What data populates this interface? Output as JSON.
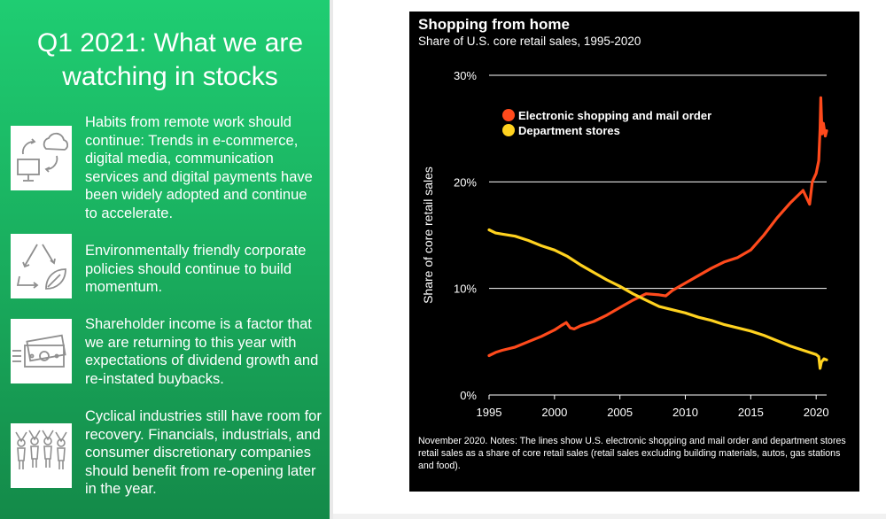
{
  "slide": {
    "title": "Q1 2021:  What we are\nwatching in stocks",
    "bullets": [
      {
        "icon": "remote-work-icon",
        "text": "Habits from remote work should continue:  Trends in e-commerce, digital media, communication services and digital payments have been widely adopted and continue to accelerate."
      },
      {
        "icon": "recycle-leaf-icon",
        "text": "Environmentally friendly corporate policies should continue to build momentum."
      },
      {
        "icon": "money-icon",
        "text": "Shareholder income is a factor that we are returning to this year with expectations of dividend growth and re-instated buybacks."
      },
      {
        "icon": "celebrating-people-icon",
        "text": "Cyclical industries still have room for recovery.  Financials, industrials, and consumer discretionary companies should benefit from re-opening later in the year."
      }
    ],
    "colors": {
      "green_top": "#1fcd72",
      "green_bottom": "#148a49"
    }
  },
  "chart_data": {
    "type": "line",
    "title": "Shopping from home",
    "subtitle": "Share of U.S. core retail sales, 1995-2020",
    "xlabel": "",
    "ylabel": "Share of core retail sales",
    "xlim": [
      1995,
      2020.8
    ],
    "ylim": [
      0,
      30
    ],
    "x_ticks": [
      "1995",
      "2000",
      "2005",
      "2010",
      "2015",
      "2020"
    ],
    "y_ticks": [
      "0%",
      "10%",
      "20%",
      "30%"
    ],
    "grid": "horizontal",
    "legend_position": "top-left",
    "note": "November 2020. Notes: The lines show U.S. electronic shopping and mail order and department stores retail sales as a share of core retail sales (retail sales excluding building materials, autos, gas stations and food).",
    "series": [
      {
        "name": "Electronic shopping and mail order",
        "color": "#ff4a1c",
        "points": [
          [
            1995.0,
            3.7
          ],
          [
            1995.5,
            4.0
          ],
          [
            1996.0,
            4.2
          ],
          [
            1997.0,
            4.5
          ],
          [
            1998.0,
            5.0
          ],
          [
            1999.0,
            5.5
          ],
          [
            2000.0,
            6.1
          ],
          [
            2000.5,
            6.5
          ],
          [
            2000.9,
            6.8
          ],
          [
            2001.2,
            6.3
          ],
          [
            2001.5,
            6.2
          ],
          [
            2002.0,
            6.5
          ],
          [
            2003.0,
            6.9
          ],
          [
            2004.0,
            7.5
          ],
          [
            2005.0,
            8.2
          ],
          [
            2006.0,
            8.9
          ],
          [
            2007.0,
            9.5
          ],
          [
            2008.0,
            9.4
          ],
          [
            2008.5,
            9.3
          ],
          [
            2009.0,
            9.8
          ],
          [
            2010.0,
            10.5
          ],
          [
            2011.0,
            11.2
          ],
          [
            2012.0,
            11.9
          ],
          [
            2013.0,
            12.5
          ],
          [
            2014.0,
            12.9
          ],
          [
            2015.0,
            13.6
          ],
          [
            2016.0,
            15.0
          ],
          [
            2017.0,
            16.6
          ],
          [
            2018.0,
            18.0
          ],
          [
            2019.0,
            19.2
          ],
          [
            2019.5,
            17.9
          ],
          [
            2019.7,
            20.0
          ],
          [
            2020.0,
            20.8
          ],
          [
            2020.2,
            22.0
          ],
          [
            2020.3,
            25.0
          ],
          [
            2020.35,
            27.9
          ],
          [
            2020.45,
            24.5
          ],
          [
            2020.55,
            25.5
          ],
          [
            2020.7,
            24.3
          ],
          [
            2020.8,
            24.8
          ]
        ]
      },
      {
        "name": "Department stores",
        "color": "#ffd21f",
        "points": [
          [
            1995.0,
            15.5
          ],
          [
            1995.5,
            15.2
          ],
          [
            1996.0,
            15.1
          ],
          [
            1997.0,
            14.9
          ],
          [
            1998.0,
            14.5
          ],
          [
            1999.0,
            14.0
          ],
          [
            2000.0,
            13.6
          ],
          [
            2001.0,
            13.0
          ],
          [
            2002.0,
            12.2
          ],
          [
            2003.0,
            11.5
          ],
          [
            2004.0,
            10.8
          ],
          [
            2005.0,
            10.2
          ],
          [
            2006.0,
            9.5
          ],
          [
            2007.0,
            8.9
          ],
          [
            2008.0,
            8.3
          ],
          [
            2009.0,
            8.0
          ],
          [
            2010.0,
            7.7
          ],
          [
            2011.0,
            7.3
          ],
          [
            2012.0,
            7.0
          ],
          [
            2013.0,
            6.6
          ],
          [
            2014.0,
            6.3
          ],
          [
            2015.0,
            6.0
          ],
          [
            2016.0,
            5.6
          ],
          [
            2017.0,
            5.1
          ],
          [
            2018.0,
            4.6
          ],
          [
            2019.0,
            4.2
          ],
          [
            2020.0,
            3.8
          ],
          [
            2020.2,
            3.6
          ],
          [
            2020.3,
            2.5
          ],
          [
            2020.4,
            3.1
          ],
          [
            2020.6,
            3.4
          ],
          [
            2020.8,
            3.3
          ]
        ]
      }
    ]
  }
}
